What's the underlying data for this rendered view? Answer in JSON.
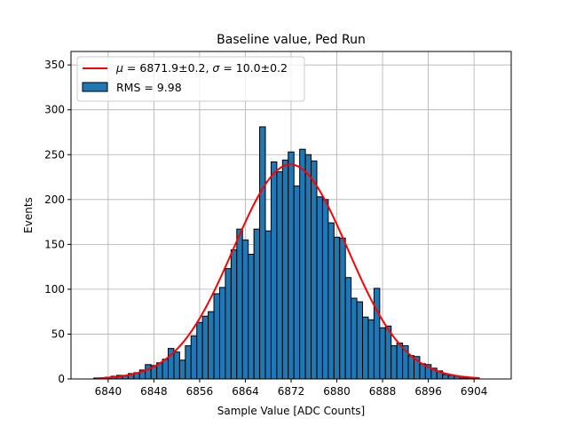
{
  "chart_data": {
    "type": "bar",
    "title": "Baseline value, Ped Run",
    "xlabel": "Sample Value [ADC Counts]",
    "ylabel": "Events",
    "xlim": [
      6833.5,
      6910.5
    ],
    "ylim": [
      0,
      365
    ],
    "xticks": [
      6840,
      6848,
      6856,
      6864,
      6872,
      6880,
      6888,
      6896,
      6904
    ],
    "yticks": [
      0,
      50,
      100,
      150,
      200,
      250,
      300,
      350
    ],
    "grid": true,
    "legend_position": "upper-left",
    "histogram": {
      "name": "RMS = 9.98",
      "color": "#1f77b4",
      "edgecolor": "#000000",
      "bin_centers": [
        6838,
        6839,
        6840,
        6841,
        6842,
        6843,
        6844,
        6845,
        6846,
        6847,
        6848,
        6849,
        6850,
        6851,
        6852,
        6853,
        6854,
        6855,
        6856,
        6857,
        6858,
        6859,
        6860,
        6861,
        6862,
        6863,
        6864,
        6865,
        6866,
        6867,
        6868,
        6869,
        6870,
        6871,
        6872,
        6873,
        6874,
        6875,
        6876,
        6877,
        6878,
        6879,
        6880,
        6881,
        6882,
        6883,
        6884,
        6885,
        6886,
        6887,
        6888,
        6889,
        6890,
        6891,
        6892,
        6893,
        6894,
        6895,
        6896,
        6897,
        6898,
        6899,
        6900,
        6901,
        6902,
        6903,
        6904
      ],
      "counts": [
        1,
        1,
        2,
        3,
        4,
        4,
        6,
        7,
        10,
        16,
        15,
        18,
        22,
        34,
        30,
        21,
        37,
        48,
        63,
        70,
        75,
        95,
        102,
        123,
        144,
        167,
        155,
        139,
        167,
        281,
        165,
        242,
        231,
        244,
        253,
        215,
        256,
        250,
        243,
        203,
        200,
        174,
        158,
        157,
        113,
        90,
        86,
        69,
        66,
        101,
        57,
        59,
        37,
        40,
        37,
        26,
        25,
        17,
        16,
        12,
        9,
        5,
        4,
        3,
        1,
        1,
        1
      ]
    },
    "series": [
      {
        "name": "$\\mu = 6871.9\\pm0.2$, $\\sigma = 10.0\\pm0.2$",
        "type": "line",
        "color": "#ff0000",
        "mu": 6871.9,
        "sigma": 10.0,
        "amplitude": 239,
        "x_range": [
          6838,
          6905
        ]
      }
    ],
    "legend": {
      "fit_label_parts": [
        "μ",
        " = 6871.9±0.2, ",
        "σ",
        " = 10.0±0.2"
      ],
      "hist_label": "RMS = 9.98"
    }
  }
}
